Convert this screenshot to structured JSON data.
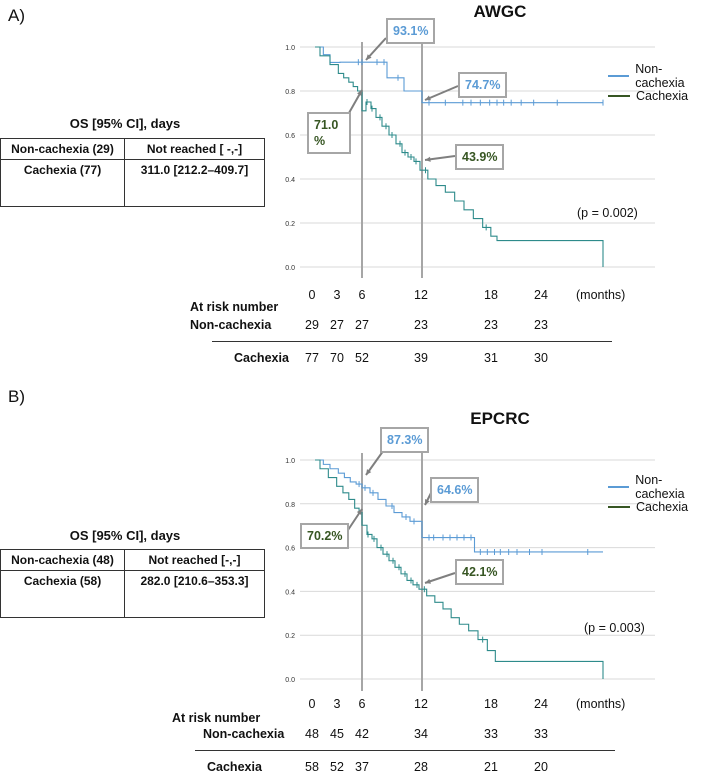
{
  "colors": {
    "non_cachexia": "#5b9bd5",
    "cachexia": "#2e8b8b",
    "legend_cachexia": "#375623",
    "annot_green": "#375623"
  },
  "chart_data": [
    {
      "type": "line",
      "panel_label": "A)",
      "title": "AWGC",
      "xlabel": "(months)",
      "xticks": [
        "0",
        "3",
        "6",
        "12",
        "18",
        "24"
      ],
      "yticks": [
        "0.0",
        "0.2",
        "0.4",
        "0.6",
        "0.8",
        "1.0"
      ],
      "xlim": [
        0,
        26
      ],
      "ylim": [
        0,
        1
      ],
      "legend": [
        "Non-cachexia",
        "Cachexia"
      ],
      "p_value": "(p = 0.002)",
      "series": [
        {
          "name": "Non-cachexia",
          "x": [
            0,
            1.0,
            1.8,
            3.0,
            4.5,
            8.5,
            10.2,
            12.0,
            26.0
          ],
          "y": [
            1.0,
            0.965,
            0.93,
            0.931,
            0.931,
            0.86,
            0.8,
            0.747,
            0.747
          ],
          "censor_x": [
            5.5,
            6.0,
            7.5,
            8.2,
            9.6,
            12.6,
            14.0,
            15.5,
            16.2,
            17.0,
            17.8,
            18.6,
            19.4,
            20.3,
            21.5,
            23.0,
            24.5,
            26.0
          ]
        },
        {
          "name": "Cachexia",
          "x": [
            0,
            0.6,
            1.8,
            2.8,
            3.5,
            4.2,
            4.8,
            5.4,
            6.0,
            6.4,
            6.9,
            7.4,
            8.0,
            8.7,
            9.4,
            10.0,
            10.6,
            11.2,
            11.8,
            12.5,
            13.2,
            14.0,
            14.8,
            15.6,
            16.4,
            17.2,
            17.9,
            18.6,
            26.0,
            26.0
          ],
          "y": [
            1.0,
            0.96,
            0.92,
            0.88,
            0.86,
            0.84,
            0.82,
            0.8,
            0.71,
            0.75,
            0.72,
            0.68,
            0.64,
            0.6,
            0.56,
            0.52,
            0.5,
            0.48,
            0.44,
            0.4,
            0.37,
            0.34,
            0.3,
            0.26,
            0.22,
            0.18,
            0.14,
            0.12,
            0.12,
            0.0
          ],
          "censor_x": [
            6.5,
            7.0,
            7.8,
            8.4,
            9.0,
            9.8,
            10.3,
            10.9,
            11.4,
            12.3,
            17.5
          ]
        }
      ],
      "annotations": [
        {
          "text": "93.1%",
          "series": "Non-cachexia"
        },
        {
          "text": "74.7%",
          "series": "Non-cachexia"
        },
        {
          "text": "71.0 %",
          "series": "Cachexia"
        },
        {
          "text": "43.9%",
          "series": "Cachexia"
        }
      ],
      "risk_table": {
        "heading": "At risk number",
        "times": [
          "0",
          "3",
          "6",
          "12",
          "18",
          "24"
        ],
        "rows": [
          {
            "label": "Non-cachexia",
            "values": [
              "29",
              "27",
              "27",
              "23",
              "23",
              "23"
            ]
          },
          {
            "label": "Cachexia",
            "values": [
              "77",
              "70",
              "52",
              "39",
              "31",
              "30"
            ]
          }
        ]
      },
      "os_table": {
        "title": "OS [95% CI], days",
        "rows": [
          [
            "Non-cachexia (29)",
            "Not reached  [ -,-]"
          ],
          [
            "Cachexia (77)",
            "311.0 [212.2–409.7]"
          ]
        ]
      }
    },
    {
      "type": "line",
      "panel_label": "B)",
      "title": "EPCRC",
      "xlabel": "(months)",
      "xticks": [
        "0",
        "3",
        "6",
        "12",
        "18",
        "24"
      ],
      "yticks": [
        "0.0",
        "0.2",
        "0.4",
        "0.6",
        "0.8",
        "1.0"
      ],
      "xlim": [
        0,
        26
      ],
      "ylim": [
        0,
        1
      ],
      "legend": [
        "Non-cachexia",
        "Cachexia"
      ],
      "p_value": "(p = 0.003)",
      "series": [
        {
          "name": "Non-cachexia",
          "x": [
            0,
            1.0,
            1.8,
            2.8,
            3.6,
            4.4,
            5.2,
            6.0,
            6.8,
            7.6,
            8.4,
            9.2,
            10.0,
            10.8,
            12.0,
            13.5,
            16.5,
            26.0
          ],
          "y": [
            1.0,
            0.98,
            0.96,
            0.94,
            0.92,
            0.9,
            0.89,
            0.873,
            0.85,
            0.82,
            0.79,
            0.76,
            0.74,
            0.72,
            0.646,
            0.646,
            0.58,
            0.58
          ],
          "censor_x": [
            5.6,
            6.3,
            7.1,
            9.0,
            10.4,
            11.2,
            12.6,
            13.0,
            13.8,
            14.4,
            15.0,
            15.6,
            16.2,
            17.0,
            17.6,
            18.3,
            19.0,
            20.0,
            21.0,
            22.5,
            24.0,
            25.5
          ]
        },
        {
          "name": "Cachexia",
          "x": [
            0,
            0.6,
            1.6,
            2.6,
            3.4,
            4.2,
            5.0,
            5.6,
            6.0,
            6.5,
            7.0,
            7.5,
            8.1,
            8.7,
            9.3,
            9.9,
            10.5,
            11.1,
            11.7,
            12.4,
            13.1,
            13.8,
            14.5,
            15.2,
            16.0,
            16.8,
            17.6,
            18.4,
            26.0,
            26.0
          ],
          "y": [
            1.0,
            0.96,
            0.92,
            0.88,
            0.85,
            0.82,
            0.78,
            0.76,
            0.702,
            0.66,
            0.64,
            0.6,
            0.57,
            0.54,
            0.51,
            0.48,
            0.45,
            0.43,
            0.41,
            0.38,
            0.35,
            0.32,
            0.28,
            0.25,
            0.22,
            0.18,
            0.13,
            0.08,
            0.08,
            0.0
          ],
          "censor_x": [
            6.6,
            7.2,
            7.9,
            8.5,
            9.1,
            9.7,
            10.3,
            10.9,
            11.5,
            12.2,
            17.2
          ]
        }
      ],
      "annotations": [
        {
          "text": "87.3%",
          "series": "Non-cachexia"
        },
        {
          "text": "64.6%",
          "series": "Non-cachexia"
        },
        {
          "text": "70.2%",
          "series": "Cachexia"
        },
        {
          "text": "42.1%",
          "series": "Cachexia"
        }
      ],
      "risk_table": {
        "heading": "At risk number",
        "times": [
          "0",
          "3",
          "6",
          "12",
          "18",
          "24"
        ],
        "rows": [
          {
            "label": "Non-cachexia",
            "values": [
              "48",
              "45",
              "42",
              "34",
              "33",
              "33"
            ]
          },
          {
            "label": "Cachexia",
            "values": [
              "58",
              "52",
              "37",
              "28",
              "21",
              "20"
            ]
          }
        ]
      },
      "os_table": {
        "title": "OS [95% CI], days",
        "rows": [
          [
            "Non-cachexia (48)",
            "Not reached [-,-]"
          ],
          [
            "Cachexia (58)",
            "282.0 [210.6–353.3]"
          ]
        ]
      }
    }
  ]
}
